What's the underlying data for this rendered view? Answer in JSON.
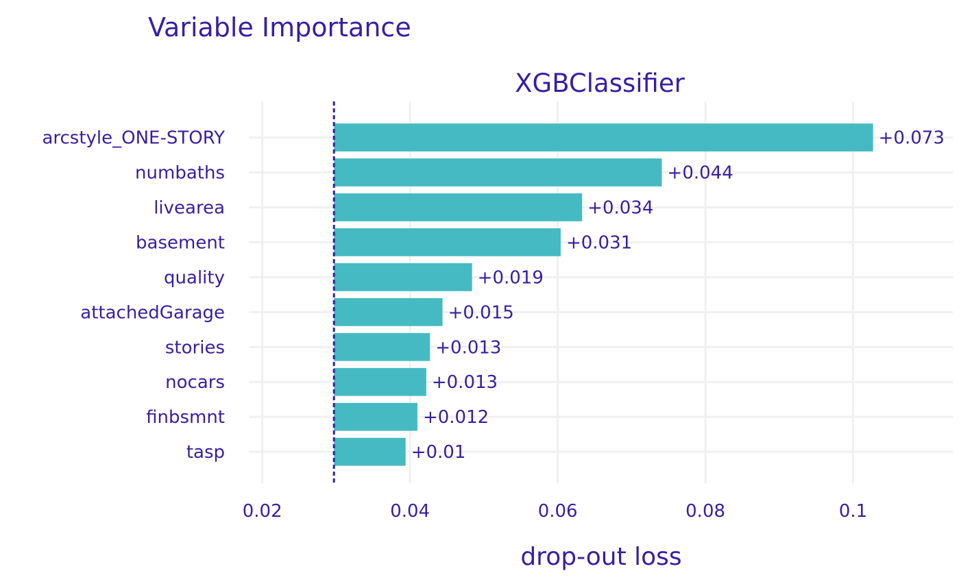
{
  "chart_data": {
    "type": "bar",
    "orientation": "horizontal",
    "title": "Variable Importance",
    "subtitle": "XGBClassifier",
    "xlabel": "drop-out loss",
    "ylabel": "",
    "baseline": 0.0297,
    "xlim": [
      0.0165,
      0.1135
    ],
    "xticks": [
      0.02,
      0.04,
      0.06,
      0.08,
      0.1
    ],
    "xtick_labels": [
      "0.02",
      "0.04",
      "0.06",
      "0.08",
      "0.1"
    ],
    "grid": true,
    "legend": "none",
    "categories": [
      "arcstyle_ONE-STORY",
      "numbaths",
      "livearea",
      "basement",
      "quality",
      "attachedGarage",
      "stories",
      "nocars",
      "finbsmnt",
      "tasp"
    ],
    "values": [
      0.1027,
      0.0741,
      0.0633,
      0.0604,
      0.0484,
      0.0444,
      0.0427,
      0.0422,
      0.041,
      0.0394
    ],
    "labels": [
      "+0.073",
      "+0.044",
      "+0.034",
      "+0.031",
      "+0.019",
      "+0.015",
      "+0.013",
      "+0.013",
      "+0.012",
      "+0.01"
    ],
    "colors": {
      "bar": "#46bac2",
      "text": "#371ea3",
      "grid": "#f0f0f0",
      "baseline": "#371ea3"
    }
  }
}
